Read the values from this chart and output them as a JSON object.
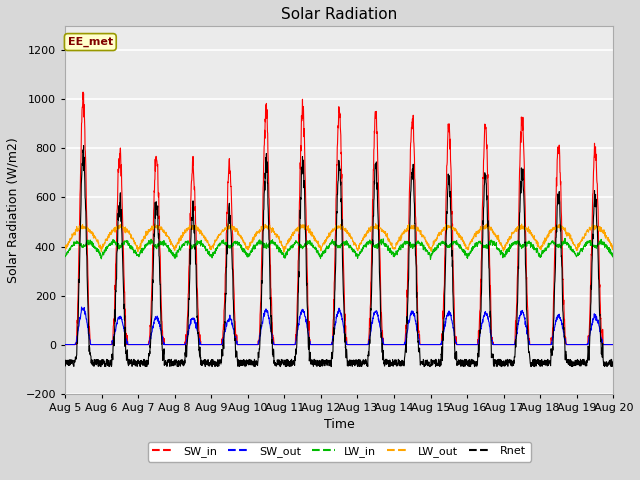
{
  "title": "Solar Radiation",
  "ylabel": "Solar Radiation (W/m2)",
  "xlabel": "Time",
  "ylim": [
    -200,
    1300
  ],
  "yticks": [
    -200,
    0,
    200,
    400,
    600,
    800,
    1000,
    1200
  ],
  "date_labels": [
    "Aug 5",
    "Aug 6",
    "Aug 7",
    "Aug 8",
    "Aug 9",
    "Aug 10",
    "Aug 11",
    "Aug 12",
    "Aug 13",
    "Aug 14",
    "Aug 15",
    "Aug 16",
    "Aug 17",
    "Aug 18",
    "Aug 19",
    "Aug 20"
  ],
  "colors": {
    "SW_in": "#ff0000",
    "SW_out": "#0000ff",
    "LW_in": "#00bb00",
    "LW_out": "#ffa500",
    "Rnet": "#000000"
  },
  "legend_label": "EE_met",
  "background_color": "#d8d8d8",
  "plot_bg_color": "#ebebeb",
  "grid_color": "#ffffff",
  "title_fontsize": 11,
  "axis_fontsize": 9,
  "tick_fontsize": 8,
  "day_peaks_sw_in": [
    1000,
    780,
    760,
    730,
    730,
    960,
    960,
    950,
    940,
    930,
    890,
    890,
    920,
    810,
    800
  ],
  "n_days": 15,
  "n_points_per_day": 144
}
